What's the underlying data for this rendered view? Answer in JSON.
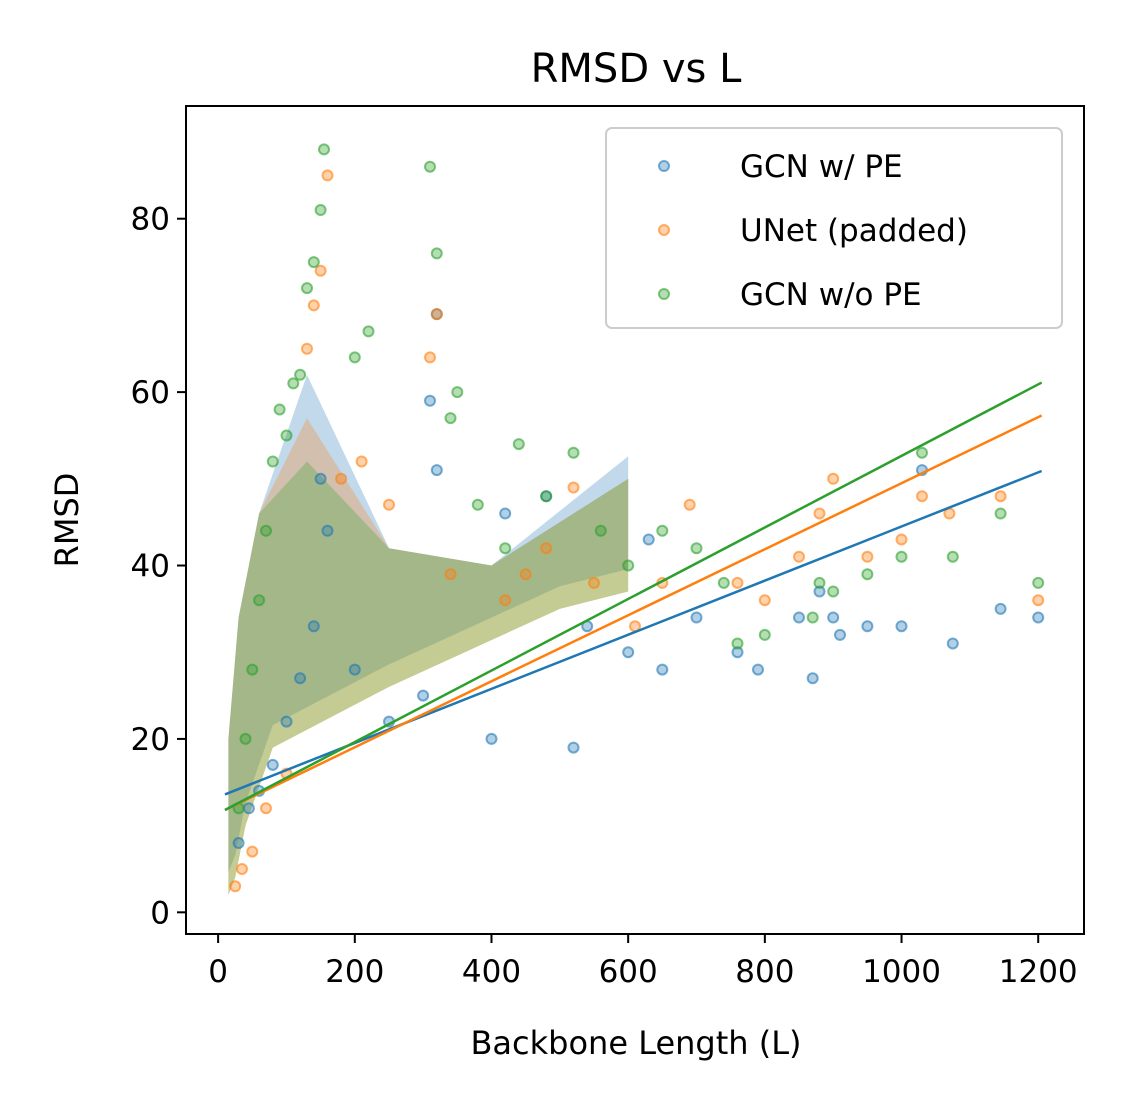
{
  "chart_data": {
    "type": "scatter",
    "title": "RMSD vs L",
    "xlabel": "Backbone Length (L)",
    "ylabel": "RMSD",
    "xlim": [
      -47,
      1267
    ],
    "ylim": [
      -2.5,
      93
    ],
    "xticks": [
      0,
      200,
      400,
      600,
      800,
      1000,
      1200
    ],
    "yticks": [
      0,
      20,
      40,
      60,
      80
    ],
    "grid": false,
    "legend_position": "top-right",
    "series": [
      {
        "name": "GCN w/ PE",
        "color": "#1f77b4",
        "fit_line": [
          [
            10,
            13.6
          ],
          [
            1205,
            50.9
          ]
        ],
        "points": [
          [
            30,
            8
          ],
          [
            45,
            12
          ],
          [
            60,
            14
          ],
          [
            80,
            17
          ],
          [
            100,
            22
          ],
          [
            120,
            27
          ],
          [
            140,
            33
          ],
          [
            150,
            50
          ],
          [
            160,
            44
          ],
          [
            200,
            28
          ],
          [
            250,
            22
          ],
          [
            300,
            25
          ],
          [
            320,
            51
          ],
          [
            320,
            69
          ],
          [
            310,
            59
          ],
          [
            400,
            20
          ],
          [
            420,
            46
          ],
          [
            480,
            48
          ],
          [
            520,
            19
          ],
          [
            540,
            33
          ],
          [
            600,
            30
          ],
          [
            630,
            43
          ],
          [
            650,
            28
          ],
          [
            700,
            34
          ],
          [
            760,
            30
          ],
          [
            790,
            28
          ],
          [
            850,
            34
          ],
          [
            870,
            27
          ],
          [
            880,
            37
          ],
          [
            900,
            34
          ],
          [
            910,
            32
          ],
          [
            950,
            33
          ],
          [
            1000,
            33
          ],
          [
            1030,
            51
          ],
          [
            1075,
            31
          ],
          [
            1145,
            35
          ],
          [
            1200,
            34
          ]
        ]
      },
      {
        "name": "UNet (padded)",
        "color": "#ff7f0e",
        "fit_line": [
          [
            10,
            11.8
          ],
          [
            1205,
            57.3
          ]
        ],
        "points": [
          [
            25,
            3
          ],
          [
            35,
            5
          ],
          [
            50,
            7
          ],
          [
            70,
            12
          ],
          [
            100,
            16
          ],
          [
            130,
            65
          ],
          [
            140,
            70
          ],
          [
            150,
            74
          ],
          [
            160,
            85
          ],
          [
            180,
            50
          ],
          [
            210,
            52
          ],
          [
            250,
            47
          ],
          [
            310,
            64
          ],
          [
            320,
            69
          ],
          [
            340,
            39
          ],
          [
            420,
            36
          ],
          [
            450,
            39
          ],
          [
            480,
            42
          ],
          [
            520,
            49
          ],
          [
            550,
            38
          ],
          [
            610,
            33
          ],
          [
            650,
            38
          ],
          [
            690,
            47
          ],
          [
            760,
            38
          ],
          [
            800,
            36
          ],
          [
            850,
            41
          ],
          [
            880,
            46
          ],
          [
            900,
            50
          ],
          [
            950,
            41
          ],
          [
            1000,
            43
          ],
          [
            1030,
            48
          ],
          [
            1070,
            46
          ],
          [
            1145,
            48
          ],
          [
            1200,
            36
          ]
        ]
      },
      {
        "name": "GCN w/o PE",
        "color": "#2ca02c",
        "fit_line": [
          [
            10,
            11.8
          ],
          [
            1205,
            61.1
          ]
        ],
        "points": [
          [
            30,
            12
          ],
          [
            40,
            20
          ],
          [
            50,
            28
          ],
          [
            60,
            36
          ],
          [
            70,
            44
          ],
          [
            80,
            52
          ],
          [
            90,
            58
          ],
          [
            100,
            55
          ],
          [
            110,
            61
          ],
          [
            120,
            62
          ],
          [
            130,
            72
          ],
          [
            140,
            75
          ],
          [
            150,
            81
          ],
          [
            155,
            88
          ],
          [
            200,
            64
          ],
          [
            220,
            67
          ],
          [
            310,
            86
          ],
          [
            320,
            76
          ],
          [
            340,
            57
          ],
          [
            350,
            60
          ],
          [
            380,
            47
          ],
          [
            420,
            42
          ],
          [
            440,
            54
          ],
          [
            480,
            48
          ],
          [
            520,
            53
          ],
          [
            560,
            44
          ],
          [
            600,
            40
          ],
          [
            650,
            44
          ],
          [
            700,
            42
          ],
          [
            740,
            38
          ],
          [
            760,
            31
          ],
          [
            800,
            32
          ],
          [
            870,
            34
          ],
          [
            880,
            38
          ],
          [
            900,
            37
          ],
          [
            950,
            39
          ],
          [
            1000,
            41
          ],
          [
            1030,
            53
          ],
          [
            1075,
            41
          ],
          [
            1145,
            46
          ],
          [
            1200,
            38
          ]
        ]
      }
    ]
  }
}
